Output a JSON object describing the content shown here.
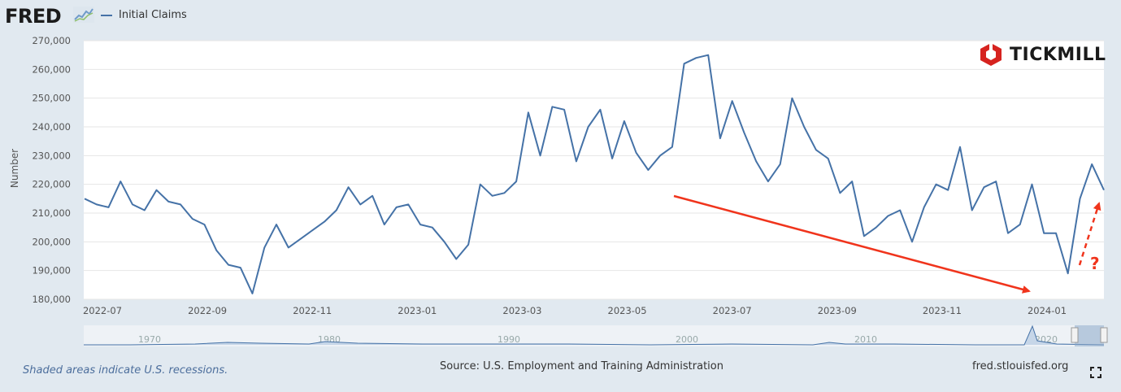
{
  "header": {
    "logo_text": "FRED",
    "logo_icon": "fred-mini-graph-icon",
    "legend_label": "Initial Claims"
  },
  "watermark": {
    "brand_text": "TICKMILL",
    "brand_icon": "tickmill-hexagon-icon"
  },
  "colors": {
    "series": "#4572a7",
    "arrow": "#f0341c",
    "background": "#e1e9f0",
    "plot_bg": "#ffffff"
  },
  "chart_data": {
    "type": "line",
    "ylabel": "Number",
    "ylim": [
      180000,
      270000
    ],
    "y_ticks": [
      180000,
      190000,
      200000,
      210000,
      220000,
      230000,
      240000,
      250000,
      260000,
      270000
    ],
    "y_tick_labels": [
      "180,000",
      "190,000",
      "200,000",
      "210,000",
      "220,000",
      "230,000",
      "240,000",
      "250,000",
      "260,000",
      "270,000"
    ],
    "x_tick_labels": [
      "2022-07",
      "2022-09",
      "2022-11",
      "2023-01",
      "2023-03",
      "2023-05",
      "2023-07",
      "2023-09",
      "2023-11",
      "2024-01"
    ],
    "grid": true,
    "series": [
      {
        "name": "Initial Claims",
        "values": [
          215000,
          213000,
          212000,
          221000,
          213000,
          211000,
          218000,
          214000,
          213000,
          208000,
          206000,
          197000,
          192000,
          191000,
          182000,
          198000,
          206000,
          198000,
          201000,
          204000,
          207000,
          211000,
          219000,
          213000,
          216000,
          206000,
          212000,
          213000,
          206000,
          205000,
          200000,
          194000,
          199000,
          220000,
          216000,
          217000,
          221000,
          245000,
          230000,
          247000,
          246000,
          228000,
          240000,
          246000,
          229000,
          242000,
          231000,
          225000,
          230000,
          233000,
          262000,
          264000,
          265000,
          236000,
          249000,
          238000,
          228000,
          221000,
          227000,
          250000,
          240000,
          232000,
          229000,
          217000,
          221000,
          202000,
          205000,
          209000,
          211000,
          200000,
          212000,
          220000,
          218000,
          233000,
          211000,
          219000,
          221000,
          203000,
          206000,
          220000,
          203000,
          203000,
          189000,
          215000,
          227000,
          218000
        ]
      }
    ],
    "annotations": [
      {
        "type": "arrow",
        "style": "solid",
        "direction": "down-right"
      },
      {
        "type": "arrow",
        "style": "dashed",
        "direction": "up-right"
      },
      {
        "type": "text",
        "text": "?"
      }
    ],
    "navigator": {
      "labels": [
        "1970",
        "1980",
        "1990",
        "2000",
        "2010",
        "2020"
      ]
    }
  },
  "footer": {
    "recession_note": "Shaded areas indicate U.S. recessions.",
    "source": "Source: U.S. Employment and Training Administration",
    "site": "fred.stlouisfed.org",
    "fullscreen_icon": "fullscreen-icon"
  }
}
